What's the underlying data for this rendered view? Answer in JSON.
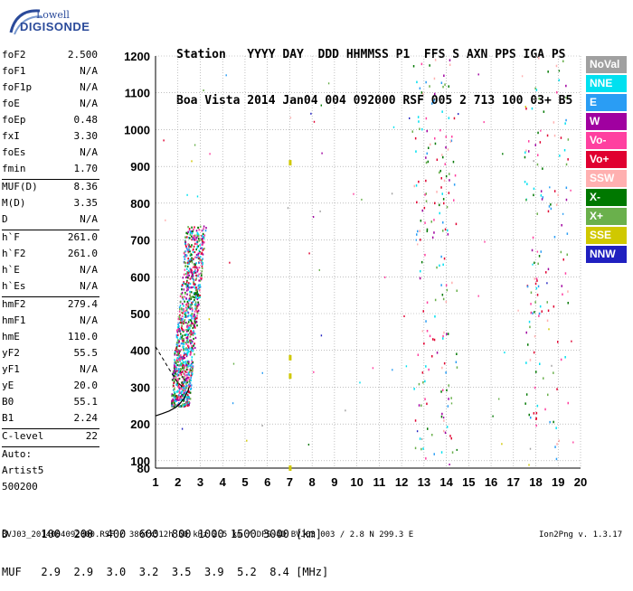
{
  "logo": {
    "line1": "Lowell",
    "line2": "DIGISONDE"
  },
  "header": {
    "labels": "Station   YYYY DAY  DDD HHMMSS P1  FFS S AXN PPS IGA PS",
    "values": "Boa Vista 2014 Jan04 004 092000 RSF 005 2 713 100 03+ B5"
  },
  "params": [
    {
      "k": "foF2",
      "v": "2.500"
    },
    {
      "k": "foF1",
      "v": "N/A"
    },
    {
      "k": "foF1p",
      "v": "N/A"
    },
    {
      "k": "foE",
      "v": "N/A"
    },
    {
      "k": "foEp",
      "v": "0.48"
    },
    {
      "k": "fxI",
      "v": "3.30"
    },
    {
      "k": "foEs",
      "v": "N/A"
    },
    {
      "k": "fmin",
      "v": "1.70"
    },
    {
      "sep": true
    },
    {
      "k": "MUF(D)",
      "v": "8.36"
    },
    {
      "k": "M(D)",
      "v": "3.35"
    },
    {
      "k": "D",
      "v": "N/A"
    },
    {
      "sep": true
    },
    {
      "k": "h`F",
      "v": "261.0"
    },
    {
      "k": "h`F2",
      "v": "261.0"
    },
    {
      "k": "h`E",
      "v": "N/A"
    },
    {
      "k": "h`Es",
      "v": "N/A"
    },
    {
      "sep": true
    },
    {
      "k": "hmF2",
      "v": "279.4"
    },
    {
      "k": "hmF1",
      "v": "N/A"
    },
    {
      "k": "hmE",
      "v": "110.0"
    },
    {
      "k": "yF2",
      "v": "55.5"
    },
    {
      "k": "yF1",
      "v": "N/A"
    },
    {
      "k": "yE",
      "v": "20.0"
    },
    {
      "k": "B0",
      "v": "55.1"
    },
    {
      "k": "B1",
      "v": "2.24"
    },
    {
      "sep": true
    },
    {
      "k": "C-level",
      "v": "22"
    },
    {
      "sep": true
    },
    {
      "t": "Auto:"
    },
    {
      "t": "Artist5"
    },
    {
      "t": "500200"
    }
  ],
  "legend": [
    {
      "label": "NoVal",
      "color": "#a0a0a0"
    },
    {
      "label": "NNE",
      "color": "#00e0f0"
    },
    {
      "label": "E",
      "color": "#2a9df4"
    },
    {
      "label": "W",
      "color": "#a000a0"
    },
    {
      "label": "Vo-",
      "color": "#ff40a0"
    },
    {
      "label": "Vo+",
      "color": "#e00030"
    },
    {
      "label": "SSW",
      "color": "#ffb0b0"
    },
    {
      "label": "X-",
      "color": "#007800"
    },
    {
      "label": "X+",
      "color": "#6ab04c"
    },
    {
      "label": "SSE",
      "color": "#d0c800"
    },
    {
      "label": "NNW",
      "color": "#2020c0"
    }
  ],
  "bottom": {
    "line1": "D     100  200  400  600  800 1000 1500 3000 [km]",
    "line2": "MUF   2.9  2.9  3.0  3.2  3.5  3.9  5.2  8.4 [MHz]"
  },
  "footer": {
    "left": "BVJ03_2014004092000.RSF / 380fx512h 50 kHz 2.5 km / DPS-4D BVJ03 003 / 2.8 N 299.3 E",
    "right": "Ion2Png v. 1.3.17"
  },
  "chart_data": {
    "type": "scatter",
    "xlim": [
      1,
      20
    ],
    "ylim": [
      80,
      1200
    ],
    "x_ticks": [
      1,
      2,
      3,
      4,
      5,
      6,
      7,
      8,
      9,
      10,
      11,
      12,
      13,
      14,
      15,
      16,
      17,
      18,
      19,
      20
    ],
    "y_ticks": [
      80,
      100,
      200,
      300,
      400,
      500,
      600,
      700,
      800,
      900,
      1000,
      1100,
      1200
    ],
    "grid": true,
    "trace_cluster": {
      "fmin": 1.7,
      "fmax": 3.3,
      "hmin": 250,
      "hmax": 740
    },
    "noise_columns": [
      12.8,
      13.2,
      13.8,
      14.1,
      17.8,
      18.3,
      19.1
    ],
    "profile": [
      [
        1,
        222
      ],
      [
        1.3,
        228
      ],
      [
        1.6,
        235
      ],
      [
        1.9,
        245
      ],
      [
        2.1,
        256
      ],
      [
        2.3,
        272
      ],
      [
        2.45,
        290
      ],
      [
        2.5,
        300
      ]
    ],
    "profile_dashed": [
      [
        1,
        410
      ],
      [
        1.5,
        360
      ],
      [
        1.9,
        320
      ],
      [
        2.2,
        300
      ]
    ]
  }
}
